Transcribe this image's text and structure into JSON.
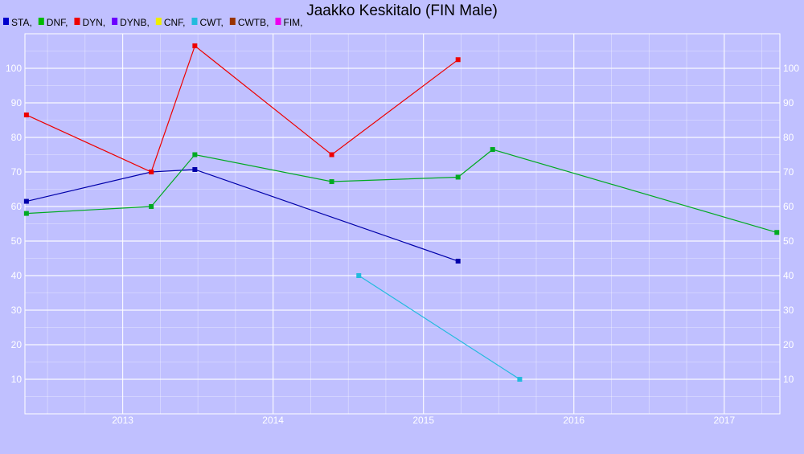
{
  "chart_data": {
    "type": "line",
    "title": "Jaakko Keskitalo (FIN Male)",
    "xlabel": "",
    "ylabel": "",
    "xlim": [
      2012.35,
      2017.37
    ],
    "ylim": [
      0,
      110
    ],
    "x_ticks": [
      2013,
      2014,
      2015,
      2016,
      2017
    ],
    "x_tick_labels": [
      "2013",
      "2014",
      "2015",
      "2016",
      "2017"
    ],
    "y_ticks": [
      10,
      20,
      30,
      40,
      50,
      60,
      70,
      80,
      90,
      100
    ],
    "y_tick_labels": [
      "10",
      "20",
      "30",
      "40",
      "50",
      "60",
      "70",
      "80",
      "90",
      "100"
    ],
    "grid": true,
    "legend_position": "top-left",
    "legend": [
      {
        "label": "STA,",
        "color": "#0000cc"
      },
      {
        "label": "DNF,",
        "color": "#00bb00"
      },
      {
        "label": "DYN,",
        "color": "#ee0000"
      },
      {
        "label": "DYNB,",
        "color": "#6a00ff"
      },
      {
        "label": "CNF,",
        "color": "#eeee00"
      },
      {
        "label": "CWT,",
        "color": "#22bbdd"
      },
      {
        "label": "CWTB,",
        "color": "#993300"
      },
      {
        "label": "FIM,",
        "color": "#ee00ee"
      }
    ],
    "series": [
      {
        "name": "STA",
        "color": "#0000aa",
        "x": [
          2012.36,
          2013.19,
          2013.48,
          2015.23
        ],
        "y": [
          61.5,
          70,
          70.7,
          44.2
        ]
      },
      {
        "name": "DNF",
        "color": "#00aa22",
        "x": [
          2012.36,
          2013.19,
          2013.48,
          2014.39,
          2015.23,
          2015.46,
          2017.35
        ],
        "y": [
          58,
          60,
          75,
          67.2,
          68.5,
          76.5,
          52.5
        ]
      },
      {
        "name": "DYN",
        "color": "#ee0000",
        "x": [
          2012.36,
          2013.19,
          2013.48,
          2014.39,
          2015.23
        ],
        "y": [
          86.5,
          70,
          106.5,
          75,
          102.5
        ]
      },
      {
        "name": "CWT",
        "color": "#22bbdd",
        "x": [
          2014.57,
          2015.64
        ],
        "y": [
          40,
          10
        ]
      }
    ]
  }
}
